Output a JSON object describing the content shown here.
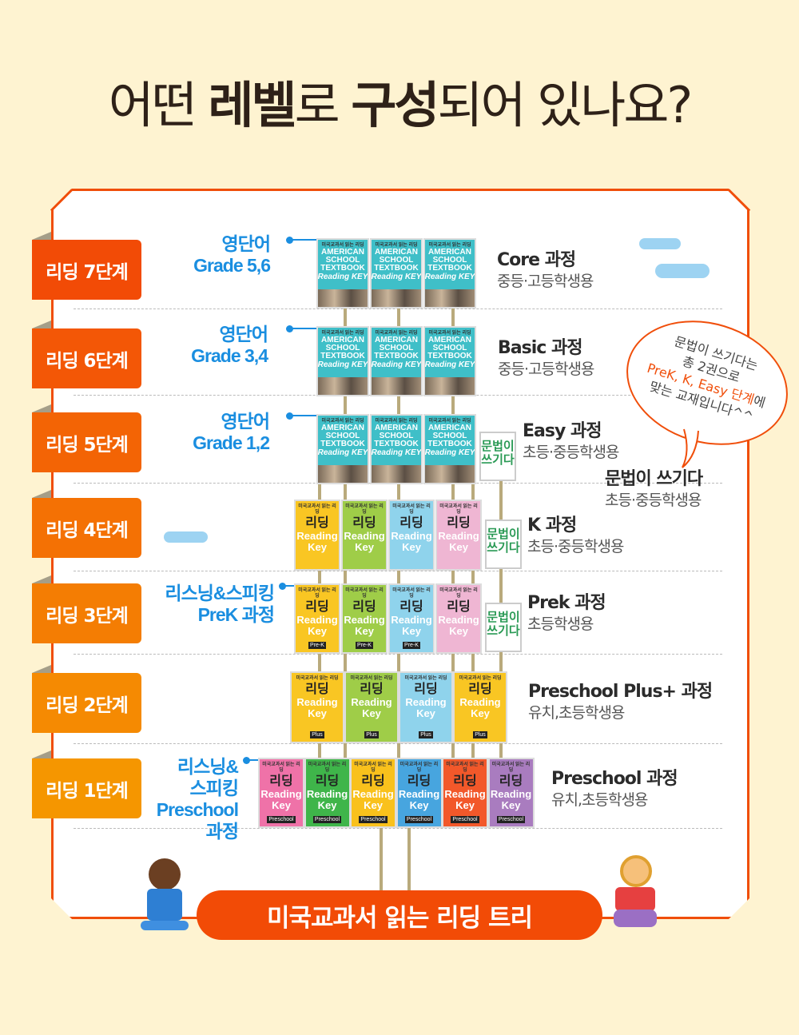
{
  "title": {
    "part1": "어떤 ",
    "part2": "레벨",
    "part3": "로 ",
    "part4": "구성",
    "part5": "되어 있나요?"
  },
  "badges": [
    {
      "label": "리딩 7단계",
      "color": "#f24b06"
    },
    {
      "label": "리딩 6단계",
      "color": "#f35706"
    },
    {
      "label": "리딩 5단계",
      "color": "#f36405"
    },
    {
      "label": "리딩 4단계",
      "color": "#f47104"
    },
    {
      "label": "리딩 3단계",
      "color": "#f47d03"
    },
    {
      "label": "리딩 2단계",
      "color": "#f58a02"
    },
    {
      "label": "리딩 1단계",
      "color": "#f59600"
    }
  ],
  "left_labels": [
    {
      "line1": "영단어",
      "line2": "Grade 5,6"
    },
    {
      "line1": "영단어",
      "line2": "Grade 3,4"
    },
    {
      "line1": "영단어",
      "line2": "Grade 1,2"
    },
    {
      "line1": "리스닝&스피킹",
      "line2": "PreK 과정"
    },
    {
      "line1": "리스닝&",
      "line2": "스피킹",
      "line3": "Preschool",
      "line4": "과정"
    }
  ],
  "courses": [
    {
      "name": "Core 과정",
      "audience": "중등·고등학생용"
    },
    {
      "name": "Basic 과정",
      "audience": "중등·고등학생용"
    },
    {
      "name": "Easy 과정",
      "audience": "초등·중등학생용"
    },
    {
      "name": "문법이 쓰기다",
      "audience": "초등·중등학생용"
    },
    {
      "name": "K 과정",
      "audience": "초등·중등학생용"
    },
    {
      "name": "Prek 과정",
      "audience": "초등학생용"
    },
    {
      "name": "Preschool Plus+ 과정",
      "audience": "유치,초등학생용"
    },
    {
      "name": "Preschool 과정",
      "audience": "유치,초등학생용"
    }
  ],
  "bubble": {
    "line1": "문법이 쓰기다는",
    "line2": "총 2권으로",
    "highlight": "PreK, K, Easy 단계",
    "tail": "에",
    "line4": "맞는 교재입니다^^"
  },
  "covers": {
    "series_kr": "미국교과서 읽는 리딩",
    "ast": "AMERICAN SCHOOL TEXTBOOK",
    "ast_key": "Reading KEY",
    "rk_kr": "리딩",
    "rk": "Reading Key",
    "grammar": "문법이 쓰기다",
    "prek": "Pre-K",
    "plus": "Plus",
    "preschool": "Preschool"
  },
  "book_colors": {
    "ast": "#3fbfc8",
    "rk": [
      "#f9c623",
      "#9fcd48",
      "#8fd3ec",
      "#efb6d3"
    ],
    "preschool": [
      "#ef72a8",
      "#3fb54a",
      "#f9c11c",
      "#47a5df",
      "#f2582a",
      "#a97cbf"
    ]
  },
  "banner": "미국교과서 읽는 리딩 트리"
}
